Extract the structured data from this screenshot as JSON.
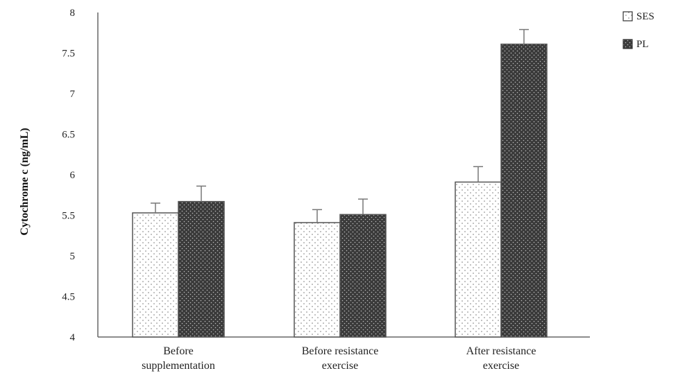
{
  "chart_data": {
    "type": "bar",
    "title": "",
    "xlabel": "",
    "ylabel": "Cytochrome c (ng/mL)",
    "ylim": [
      4,
      8
    ],
    "yticks": [
      "4",
      "4.5",
      "5",
      "5.5",
      "6",
      "6.5",
      "7",
      "7.5",
      "8"
    ],
    "categories": [
      [
        "Before",
        "supplementation"
      ],
      [
        "Before resistance",
        "exercise"
      ],
      [
        "After resistance",
        "exercise"
      ]
    ],
    "series": [
      {
        "name": "SES",
        "values": [
          5.53,
          5.41,
          5.91
        ],
        "errors": [
          0.12,
          0.16,
          0.19
        ],
        "pattern": "light-dots",
        "color": "#ffffff"
      },
      {
        "name": "PL",
        "values": [
          5.67,
          5.51,
          7.61
        ],
        "errors": [
          0.19,
          0.19,
          0.18
        ],
        "pattern": "dark-dots",
        "color": "#3a3a3a"
      }
    ],
    "grid": false,
    "legend": "top-right"
  }
}
